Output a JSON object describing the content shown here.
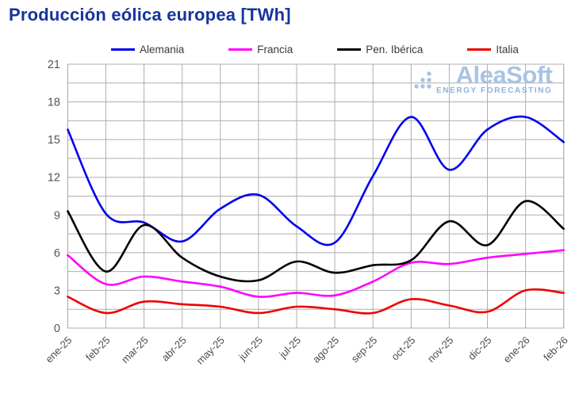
{
  "title": "Producción eólica europea [TWh]",
  "watermark": {
    "name": "AleaSoft",
    "tagline": "ENERGY FORECASTING"
  },
  "legend": [
    {
      "label": "Alemania",
      "color": "#0000ee"
    },
    {
      "label": "Francia",
      "color": "#ff00ff"
    },
    {
      "label": "Pen. Ibérica",
      "color": "#000000"
    },
    {
      "label": "Italia",
      "color": "#ee0000"
    }
  ],
  "chart_data": {
    "type": "line",
    "title": "Producción eólica europea [TWh]",
    "xlabel": "",
    "ylabel": "TWh",
    "x": [
      "ene-25",
      "feb-25",
      "mar-25",
      "abr-25",
      "may-25",
      "jun-25",
      "jul-25",
      "ago-25",
      "sep-25",
      "oct-25",
      "nov-25",
      "dic-25",
      "ene-26",
      "feb-26"
    ],
    "series": [
      {
        "name": "Alemania",
        "color": "#0000ee",
        "values": [
          15.8,
          9.1,
          8.4,
          6.9,
          9.5,
          10.6,
          8.1,
          6.8,
          12.1,
          16.8,
          12.6,
          15.8,
          16.8,
          14.8
        ]
      },
      {
        "name": "Francia",
        "color": "#ff00ff",
        "values": [
          5.8,
          3.5,
          4.1,
          3.7,
          3.3,
          2.5,
          2.8,
          2.6,
          3.7,
          5.2,
          5.1,
          5.6,
          5.9,
          6.2
        ]
      },
      {
        "name": "Pen. Ibérica",
        "color": "#000000",
        "values": [
          9.3,
          4.5,
          8.2,
          5.6,
          4.1,
          3.8,
          5.3,
          4.4,
          5.0,
          5.4,
          8.5,
          6.6,
          10.1,
          7.9
        ]
      },
      {
        "name": "Italia",
        "color": "#ee0000",
        "values": [
          2.5,
          1.2,
          2.1,
          1.9,
          1.7,
          1.2,
          1.7,
          1.5,
          1.2,
          2.3,
          1.8,
          1.3,
          3.0,
          2.8
        ]
      }
    ],
    "ylim": [
      0,
      21
    ],
    "yticks": [
      0,
      3,
      6,
      9,
      12,
      15,
      18,
      21
    ],
    "grid": {
      "horizontal_step": 1.5,
      "vertical_per_month": true,
      "color": "#aeaeae"
    },
    "legend_position": "top",
    "x_tick_rotation": -45,
    "curve": "smooth"
  }
}
